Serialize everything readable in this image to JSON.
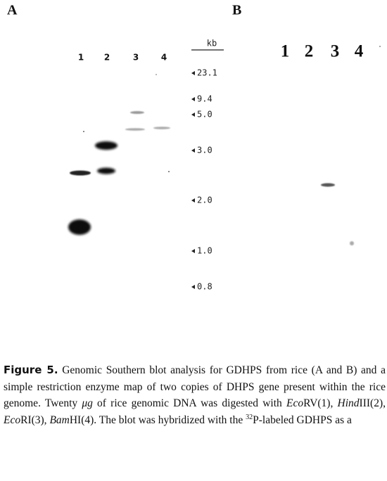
{
  "panel_a": {
    "label": "A",
    "lanes": [
      "1",
      "2",
      "3",
      "4"
    ],
    "size_unit": "kb",
    "markers": [
      "23.1",
      "9.4",
      "5.0",
      "3.0",
      "2.0",
      "1.0",
      "0.8"
    ]
  },
  "panel_b": {
    "label": "B",
    "lanes": [
      "1",
      "2",
      "3",
      "4"
    ]
  },
  "caption": {
    "label": "Figure 5.",
    "parts": [
      " Genomic Southern blot analysis for GDHPS from rice (A and B) and a simple restriction enzyme map of two copies of DHPS gene present within the rice genome. Twenty ",
      "μg",
      " of rice genomic DNA was digested with ",
      "Eco",
      "RV(1), ",
      "Hind",
      "III(2), ",
      "Eco",
      "RI(3), ",
      "Bam",
      "HI(4). The blot was hybridized with the ",
      "32",
      "P-labeled GDHPS as a"
    ]
  }
}
